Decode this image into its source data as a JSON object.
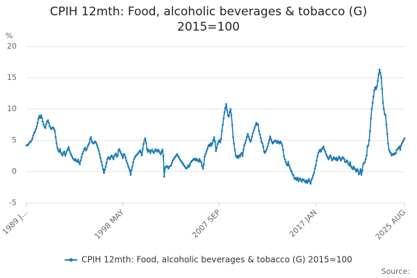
{
  "chart_data": {
    "type": "line",
    "title": "CPIH 12mth: Food, alcoholic beverages & tobacco (G) 2015=100",
    "y_label": "%",
    "source": "Source:",
    "ylim": [
      -5,
      20
    ],
    "yticks": [
      -5,
      0,
      5,
      10,
      15,
      20
    ],
    "grid": true,
    "categories": [
      "1989 J...",
      null,
      null,
      null,
      null,
      null,
      null,
      null,
      null,
      null,
      null,
      null,
      null,
      null,
      null,
      null,
      null,
      null,
      null,
      null,
      null,
      null,
      null,
      null,
      null,
      null,
      null,
      null,
      null,
      null,
      null,
      null,
      null,
      null,
      null,
      null,
      null,
      null,
      null,
      null,
      null,
      null,
      null,
      null,
      null,
      null,
      null,
      null,
      null,
      null,
      null,
      null,
      null,
      null,
      null,
      null,
      null,
      null,
      null,
      null,
      null,
      null,
      null,
      null,
      null,
      null,
      null,
      null,
      null,
      null,
      null,
      null,
      null,
      null,
      null,
      null,
      null,
      null,
      null,
      null,
      null,
      null,
      null,
      null,
      null,
      null,
      null,
      null,
      null,
      null,
      null,
      null,
      null,
      null,
      null,
      null,
      null,
      null,
      null,
      null,
      null,
      null,
      null,
      null,
      null,
      null,
      null,
      null,
      null,
      null,
      null,
      null,
      "1998 MAY",
      null,
      null,
      null,
      null,
      null,
      null,
      null,
      null,
      null,
      null,
      null,
      null,
      null,
      null,
      null,
      null,
      null,
      null,
      null,
      null,
      null,
      null,
      null,
      null,
      null,
      null,
      null,
      null,
      null,
      null,
      null,
      null,
      null,
      null,
      null,
      null,
      null,
      null,
      null,
      null,
      null,
      null,
      null,
      null,
      null,
      null,
      null,
      null,
      null,
      null,
      null,
      null,
      null,
      null,
      null,
      null,
      null,
      null,
      null,
      null,
      null,
      null,
      null,
      null,
      null,
      null,
      null,
      null,
      null,
      null,
      null,
      null,
      null,
      null,
      null,
      null,
      null,
      null,
      null,
      null,
      null,
      null,
      null,
      null,
      null,
      null,
      null,
      null,
      null,
      null,
      null,
      null,
      null,
      null,
      null,
      null,
      null,
      null,
      null,
      null,
      null,
      null,
      null,
      null,
      null,
      null,
      null,
      null,
      null,
      null,
      null,
      "2007 SEP",
      null,
      null,
      null,
      null,
      null,
      null,
      null,
      null,
      null,
      null,
      null,
      null,
      null,
      null,
      null,
      null,
      null,
      null,
      null,
      null,
      null,
      null,
      null,
      null,
      null,
      null,
      null,
      null,
      null,
      null,
      null,
      null,
      null,
      null,
      null,
      null,
      null,
      null,
      null,
      null,
      null,
      null,
      null,
      null,
      null,
      null,
      null,
      null,
      null,
      null,
      null,
      null,
      null,
      null,
      null,
      null,
      null,
      null,
      null,
      null,
      null,
      null,
      null,
      null,
      null,
      null,
      null,
      null,
      null,
      null,
      null,
      null,
      null,
      null,
      null,
      null,
      null,
      null,
      null,
      null,
      null,
      null,
      null,
      null,
      null,
      null,
      null,
      null,
      null,
      null,
      null,
      null,
      null,
      null,
      null,
      null,
      null,
      null,
      null,
      null,
      null,
      null,
      null,
      null,
      null,
      null,
      null,
      null,
      null,
      null,
      null,
      "2017 JAN",
      null,
      null,
      null,
      null,
      null,
      null,
      null,
      null,
      null,
      null,
      null,
      null,
      null,
      null,
      null,
      null,
      null,
      null,
      null,
      null,
      null,
      null,
      null,
      null,
      null,
      null,
      null,
      null,
      null,
      null,
      null,
      null,
      null,
      null,
      null,
      null,
      null,
      null,
      null,
      null,
      null,
      null,
      null,
      null,
      null,
      null,
      null,
      null,
      null,
      null,
      null,
      null,
      null,
      null,
      null,
      null,
      null,
      null,
      null,
      null,
      null,
      null,
      null,
      null,
      null,
      null,
      null,
      null,
      null,
      null,
      null,
      null,
      null,
      null,
      null,
      null,
      null,
      null,
      null,
      null,
      null,
      null,
      null,
      null,
      null,
      null,
      null,
      null,
      null,
      null,
      null,
      null,
      null,
      null,
      null,
      null,
      null,
      null,
      null,
      null,
      null,
      null,
      "2025 AUG"
    ],
    "series": [
      {
        "name": "CPIH 12mth: Food, alcoholic beverages & tobacco (G) 2015=100",
        "color": "#1a7ab5",
        "values": [
          4.2,
          4.2,
          4.3,
          4.5,
          4.7,
          4.8,
          5.0,
          5.3,
          5.8,
          6.2,
          6.4,
          6.8,
          7.2,
          7.8,
          8.5,
          8.9,
          8.6,
          9.0,
          8.6,
          8.0,
          7.5,
          7.2,
          7.0,
          7.6,
          8.0,
          8.2,
          7.8,
          7.3,
          7.0,
          6.8,
          7.0,
          7.1,
          6.8,
          6.5,
          5.5,
          4.5,
          3.8,
          3.4,
          3.2,
          3.6,
          3.1,
          2.8,
          2.6,
          3.0,
          3.2,
          2.6,
          2.9,
          3.3,
          3.6,
          3.9,
          3.4,
          3.0,
          2.7,
          2.4,
          2.1,
          2.0,
          1.8,
          2.0,
          1.7,
          1.6,
          1.9,
          1.5,
          1.2,
          1.8,
          2.3,
          2.8,
          3.2,
          3.6,
          3.8,
          3.4,
          3.6,
          4.0,
          4.3,
          4.6,
          5.2,
          5.5,
          4.8,
          4.6,
          4.5,
          4.7,
          4.8,
          4.6,
          4.2,
          3.8,
          3.4,
          2.8,
          2.2,
          1.6,
          1.0,
          0.4,
          -0.2,
          0.3,
          0.8,
          1.4,
          2.0,
          2.3,
          2.2,
          2.0,
          2.4,
          2.6,
          2.3,
          2.0,
          2.5,
          2.7,
          2.9,
          2.4,
          2.6,
          3.4,
          3.6,
          3.2,
          2.9,
          2.6,
          2.2,
          2.8,
          2.7,
          2.3,
          1.8,
          1.4,
          1.0,
          0.6,
          0.2,
          -0.5,
          0.3,
          0.8,
          1.5,
          2.0,
          2.3,
          2.5,
          2.7,
          2.8,
          3.0,
          3.2,
          3.4,
          3.1,
          2.6,
          3.6,
          4.4,
          5.0,
          5.3,
          4.6,
          3.6,
          3.2,
          3.5,
          3.3,
          3.0,
          3.4,
          3.5,
          3.2,
          3.0,
          3.3,
          3.6,
          3.4,
          3.2,
          3.5,
          3.3,
          3.0,
          2.8,
          3.2,
          3.5,
          2.5,
          -0.8,
          0.6,
          0.8,
          0.9,
          0.7,
          0.5,
          0.8,
          0.9,
          1.0,
          1.4,
          1.8,
          2.0,
          2.2,
          2.4,
          2.6,
          2.8,
          2.5,
          2.3,
          2.0,
          1.8,
          1.6,
          1.4,
          1.2,
          1.0,
          0.8,
          0.6,
          0.5,
          0.7,
          1.0,
          0.8,
          1.2,
          1.5,
          1.7,
          1.8,
          2.0,
          1.9,
          2.1,
          1.8,
          2.0,
          1.8,
          1.6,
          2.0,
          1.7,
          1.5,
          0.9,
          0.5,
          1.2,
          2.4,
          2.8,
          3.2,
          3.6,
          4.0,
          4.3,
          4.1,
          4.5,
          4.2,
          4.6,
          5.0,
          5.5,
          4.8,
          3.3,
          3.8,
          4.4,
          4.8,
          5.0,
          4.7,
          5.2,
          6.5,
          7.5,
          8.5,
          9.5,
          10.2,
          10.8,
          9.8,
          9.0,
          8.8,
          9.5,
          10.0,
          9.0,
          7.5,
          5.5,
          4.5,
          3.5,
          2.6,
          2.3,
          2.5,
          2.2,
          2.6,
          2.4,
          2.8,
          3.0,
          2.5,
          3.5,
          4.2,
          4.6,
          5.0,
          5.5,
          6.0,
          5.6,
          5.2,
          4.8,
          5.0,
          5.6,
          6.2,
          6.6,
          7.0,
          7.4,
          7.8,
          7.5,
          7.6,
          6.5,
          6.0,
          5.4,
          4.8,
          4.5,
          4.0,
          3.2,
          3.0,
          3.3,
          3.6,
          4.0,
          4.5,
          5.0,
          5.6,
          5.2,
          4.8,
          4.5,
          4.7,
          4.9,
          5.0,
          4.8,
          4.6,
          4.9,
          4.7,
          4.5,
          4.8,
          4.6,
          4.2,
          3.5,
          2.5,
          2.0,
          1.6,
          1.2,
          1.0,
          1.5,
          1.0,
          0.6,
          0.2,
          0.0,
          -0.4,
          -0.6,
          -1.0,
          -1.2,
          -1.0,
          -1.3,
          -1.0,
          -1.5,
          -1.2,
          -1.1,
          -1.4,
          -1.6,
          -1.2,
          -1.3,
          -1.5,
          -1.7,
          -1.4,
          -1.8,
          -1.5,
          -1.2,
          -1.6,
          -1.9,
          -1.3,
          -1.0,
          -0.6,
          -0.2,
          0.5,
          1.0,
          1.8,
          2.5,
          3.0,
          3.3,
          3.5,
          3.2,
          3.6,
          3.8,
          4.0,
          3.5,
          3.2,
          2.8,
          2.5,
          2.2,
          2.0,
          2.4,
          2.6,
          2.2,
          1.8,
          2.0,
          2.3,
          2.1,
          1.9,
          2.2,
          1.8,
          2.0,
          2.4,
          2.2,
          1.8,
          2.0,
          2.3,
          2.2,
          2.0,
          1.6,
          1.5,
          1.8,
          1.6,
          1.2,
          1.0,
          1.5,
          0.8,
          0.6,
          0.4,
          0.8,
          0.5,
          0.3,
          0.0,
          0.4,
          0.2,
          -0.4,
          -0.2,
          0.4,
          -0.5,
          0.2,
          1.2,
          1.4,
          1.5,
          2.0,
          2.6,
          4.0,
          4.2,
          5.0,
          6.5,
          8.5,
          10.0,
          11.0,
          12.0,
          13.0,
          13.5,
          13.2,
          13.6,
          14.5,
          15.5,
          16.3,
          15.8,
          15.0,
          13.2,
          11.0,
          10.0,
          9.2,
          9.0,
          7.5,
          6.0,
          4.5,
          3.5,
          3.2,
          3.0,
          2.6,
          2.8,
          2.7,
          2.9,
          2.8,
          3.0,
          3.5,
          3.6,
          3.8,
          4.0,
          3.5,
          4.2,
          4.5,
          4.8,
          5.0,
          5.3
        ]
      }
    ]
  }
}
